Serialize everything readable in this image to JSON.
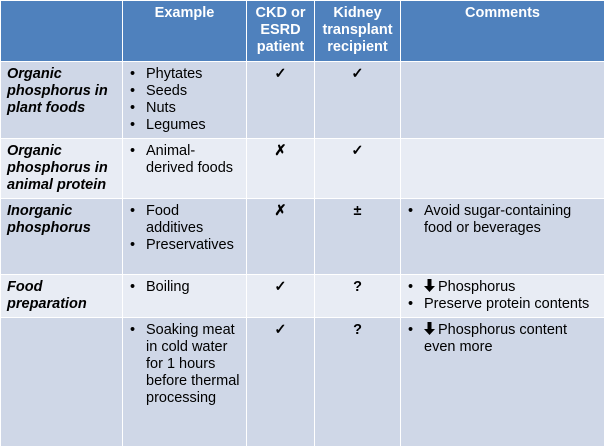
{
  "headers": [
    "",
    "Example",
    "CKD or ESRD patient",
    "Kidney transplant recipient",
    "Comments"
  ],
  "rows": [
    {
      "category": "Organic phosphorus in plant foods",
      "examples": [
        "Phytates",
        "Seeds",
        "Nuts",
        "Legumes"
      ],
      "ckd": "✓",
      "transplant": "✓",
      "comments": []
    },
    {
      "category": "Organic phosphorus in animal protein",
      "examples": [
        "Animal-derived foods"
      ],
      "ckd": "✗",
      "transplant": "✓",
      "comments": []
    },
    {
      "category": "Inorganic phosphorus",
      "examples": [
        "Food additives",
        "Preservatives"
      ],
      "ckd": "✗",
      "transplant": "±",
      "comments": [
        {
          "text": "Avoid sugar-containing food or beverages",
          "arrow": false
        }
      ]
    },
    {
      "category": "Food preparation",
      "examples": [
        "Boiling"
      ],
      "ckd": "✓",
      "transplant": "?",
      "comments": [
        {
          "text": "Phosphorus",
          "arrow": true
        },
        {
          "text": "Preserve protein contents",
          "arrow": false
        }
      ]
    },
    {
      "category": "",
      "examples": [
        "Soaking meat in cold water for 1 hours before thermal processing"
      ],
      "ckd": "✓",
      "transplant": "?",
      "comments": [
        {
          "text": "Phosphorus content even more",
          "arrow": true
        }
      ]
    }
  ],
  "icons": {
    "arrow": "down-arrow-icon"
  },
  "colors": {
    "header": "#4f81bd",
    "row_dark": "#cfd7e7",
    "row_light": "#e8ecf4"
  }
}
